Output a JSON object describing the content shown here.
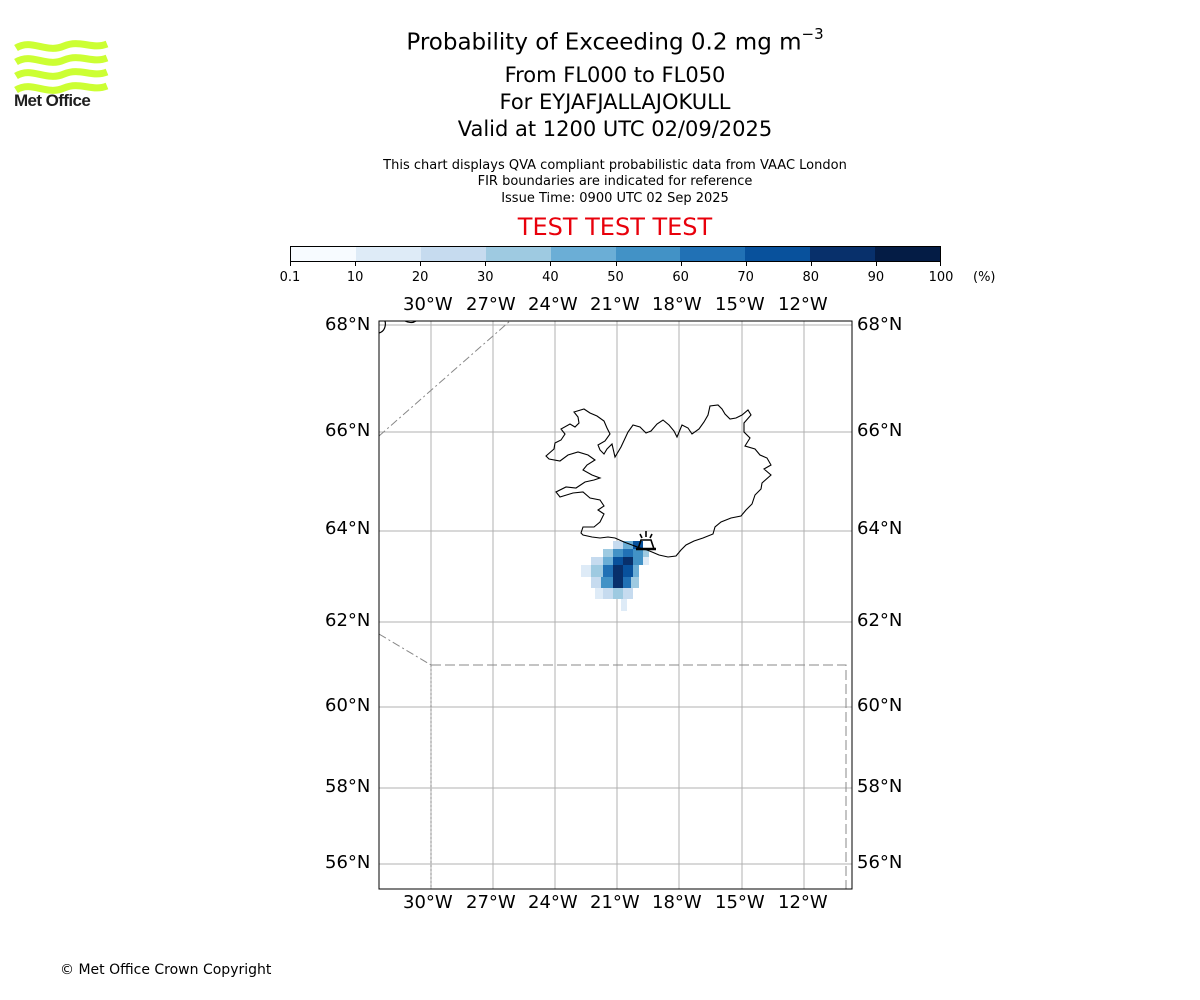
{
  "title": {
    "main": "Probability of Exceeding 0.2 mg m",
    "main_superscript": "−3",
    "line1": "From FL000 to FL050",
    "line2": "For EYJAFJALLAJOKULL",
    "line3": "Valid at 1200 UTC 02/09/2025"
  },
  "notes": {
    "line1": "This chart displays QVA compliant probabilistic data from VAAC London",
    "line2": "FIR boundaries are indicated for reference",
    "line3": "Issue Time: 0900 UTC 02 Sep 2025"
  },
  "test_banner": "TEST TEST TEST",
  "logo": {
    "text": "Met Office",
    "color": "#ccff33",
    "icon": "met-office-wave-logo"
  },
  "colorbar": {
    "ticks": [
      "0.1",
      "10",
      "20",
      "30",
      "40",
      "50",
      "60",
      "70",
      "80",
      "90",
      "100"
    ],
    "unit": "(%)",
    "colors": [
      "#f7fbff",
      "#deebf7",
      "#c6dbef",
      "#9ecae1",
      "#6baed6",
      "#4292c6",
      "#2171b5",
      "#08519c",
      "#08306b",
      "#041c45"
    ]
  },
  "map": {
    "lon_labels": [
      "30°W",
      "27°W",
      "24°W",
      "21°W",
      "18°W",
      "15°W",
      "12°W"
    ],
    "lat_labels": [
      "68°N",
      "66°N",
      "64°N",
      "62°N",
      "60°N",
      "58°N",
      "56°N"
    ],
    "volcano": "EYJAFJALLAJOKULL",
    "volcano_icon": "volcano-icon"
  },
  "copyright": "© Met Office Crown Copyright"
}
